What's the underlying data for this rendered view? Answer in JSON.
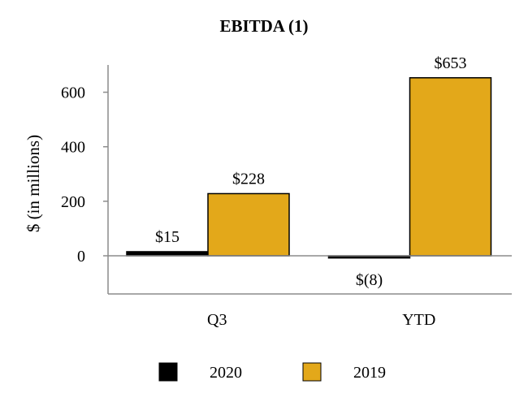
{
  "chart_data": {
    "type": "bar",
    "title": "EBITDA (1)",
    "ylabel": "$ (in millions)",
    "xlabel": "",
    "categories": [
      "Q3",
      "YTD"
    ],
    "series": [
      {
        "name": "2020",
        "values": [
          15,
          -8
        ],
        "labels": [
          "$15",
          "$(8)"
        ],
        "color": "#000000"
      },
      {
        "name": "2019",
        "values": [
          228,
          653
        ],
        "labels": [
          "$228",
          "$653"
        ],
        "color": "#E3A81A"
      }
    ],
    "yticks": [
      0,
      200,
      400,
      600
    ],
    "ytick_labels": [
      "0",
      "200",
      "400",
      "600"
    ],
    "ylim": [
      -140,
      700
    ],
    "grid": false,
    "legend": "bottom"
  }
}
